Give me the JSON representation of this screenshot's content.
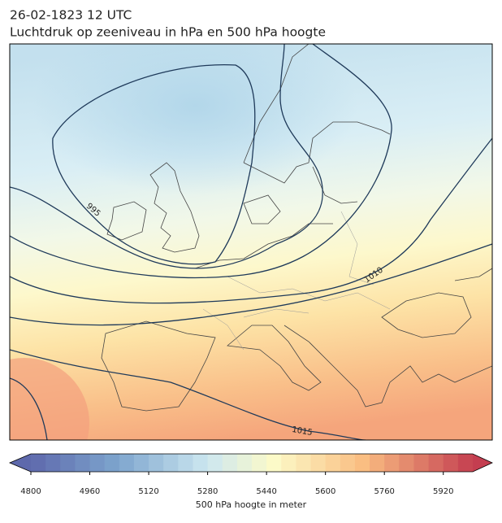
{
  "header": {
    "date": "26-02-1823 12 UTC",
    "title": "Luchtdruk op zeeniveau in hPa en 500 hPa hoogte"
  },
  "map": {
    "contour_labels": [
      995,
      1010,
      1015
    ]
  },
  "colorbar": {
    "label": "500 hPa hoogte in meter",
    "lim": [
      4800,
      6000
    ],
    "level_step": 40,
    "ticks": [
      4800,
      4960,
      5120,
      5280,
      5440,
      5600,
      5760,
      5920
    ],
    "extend": "both"
  }
}
